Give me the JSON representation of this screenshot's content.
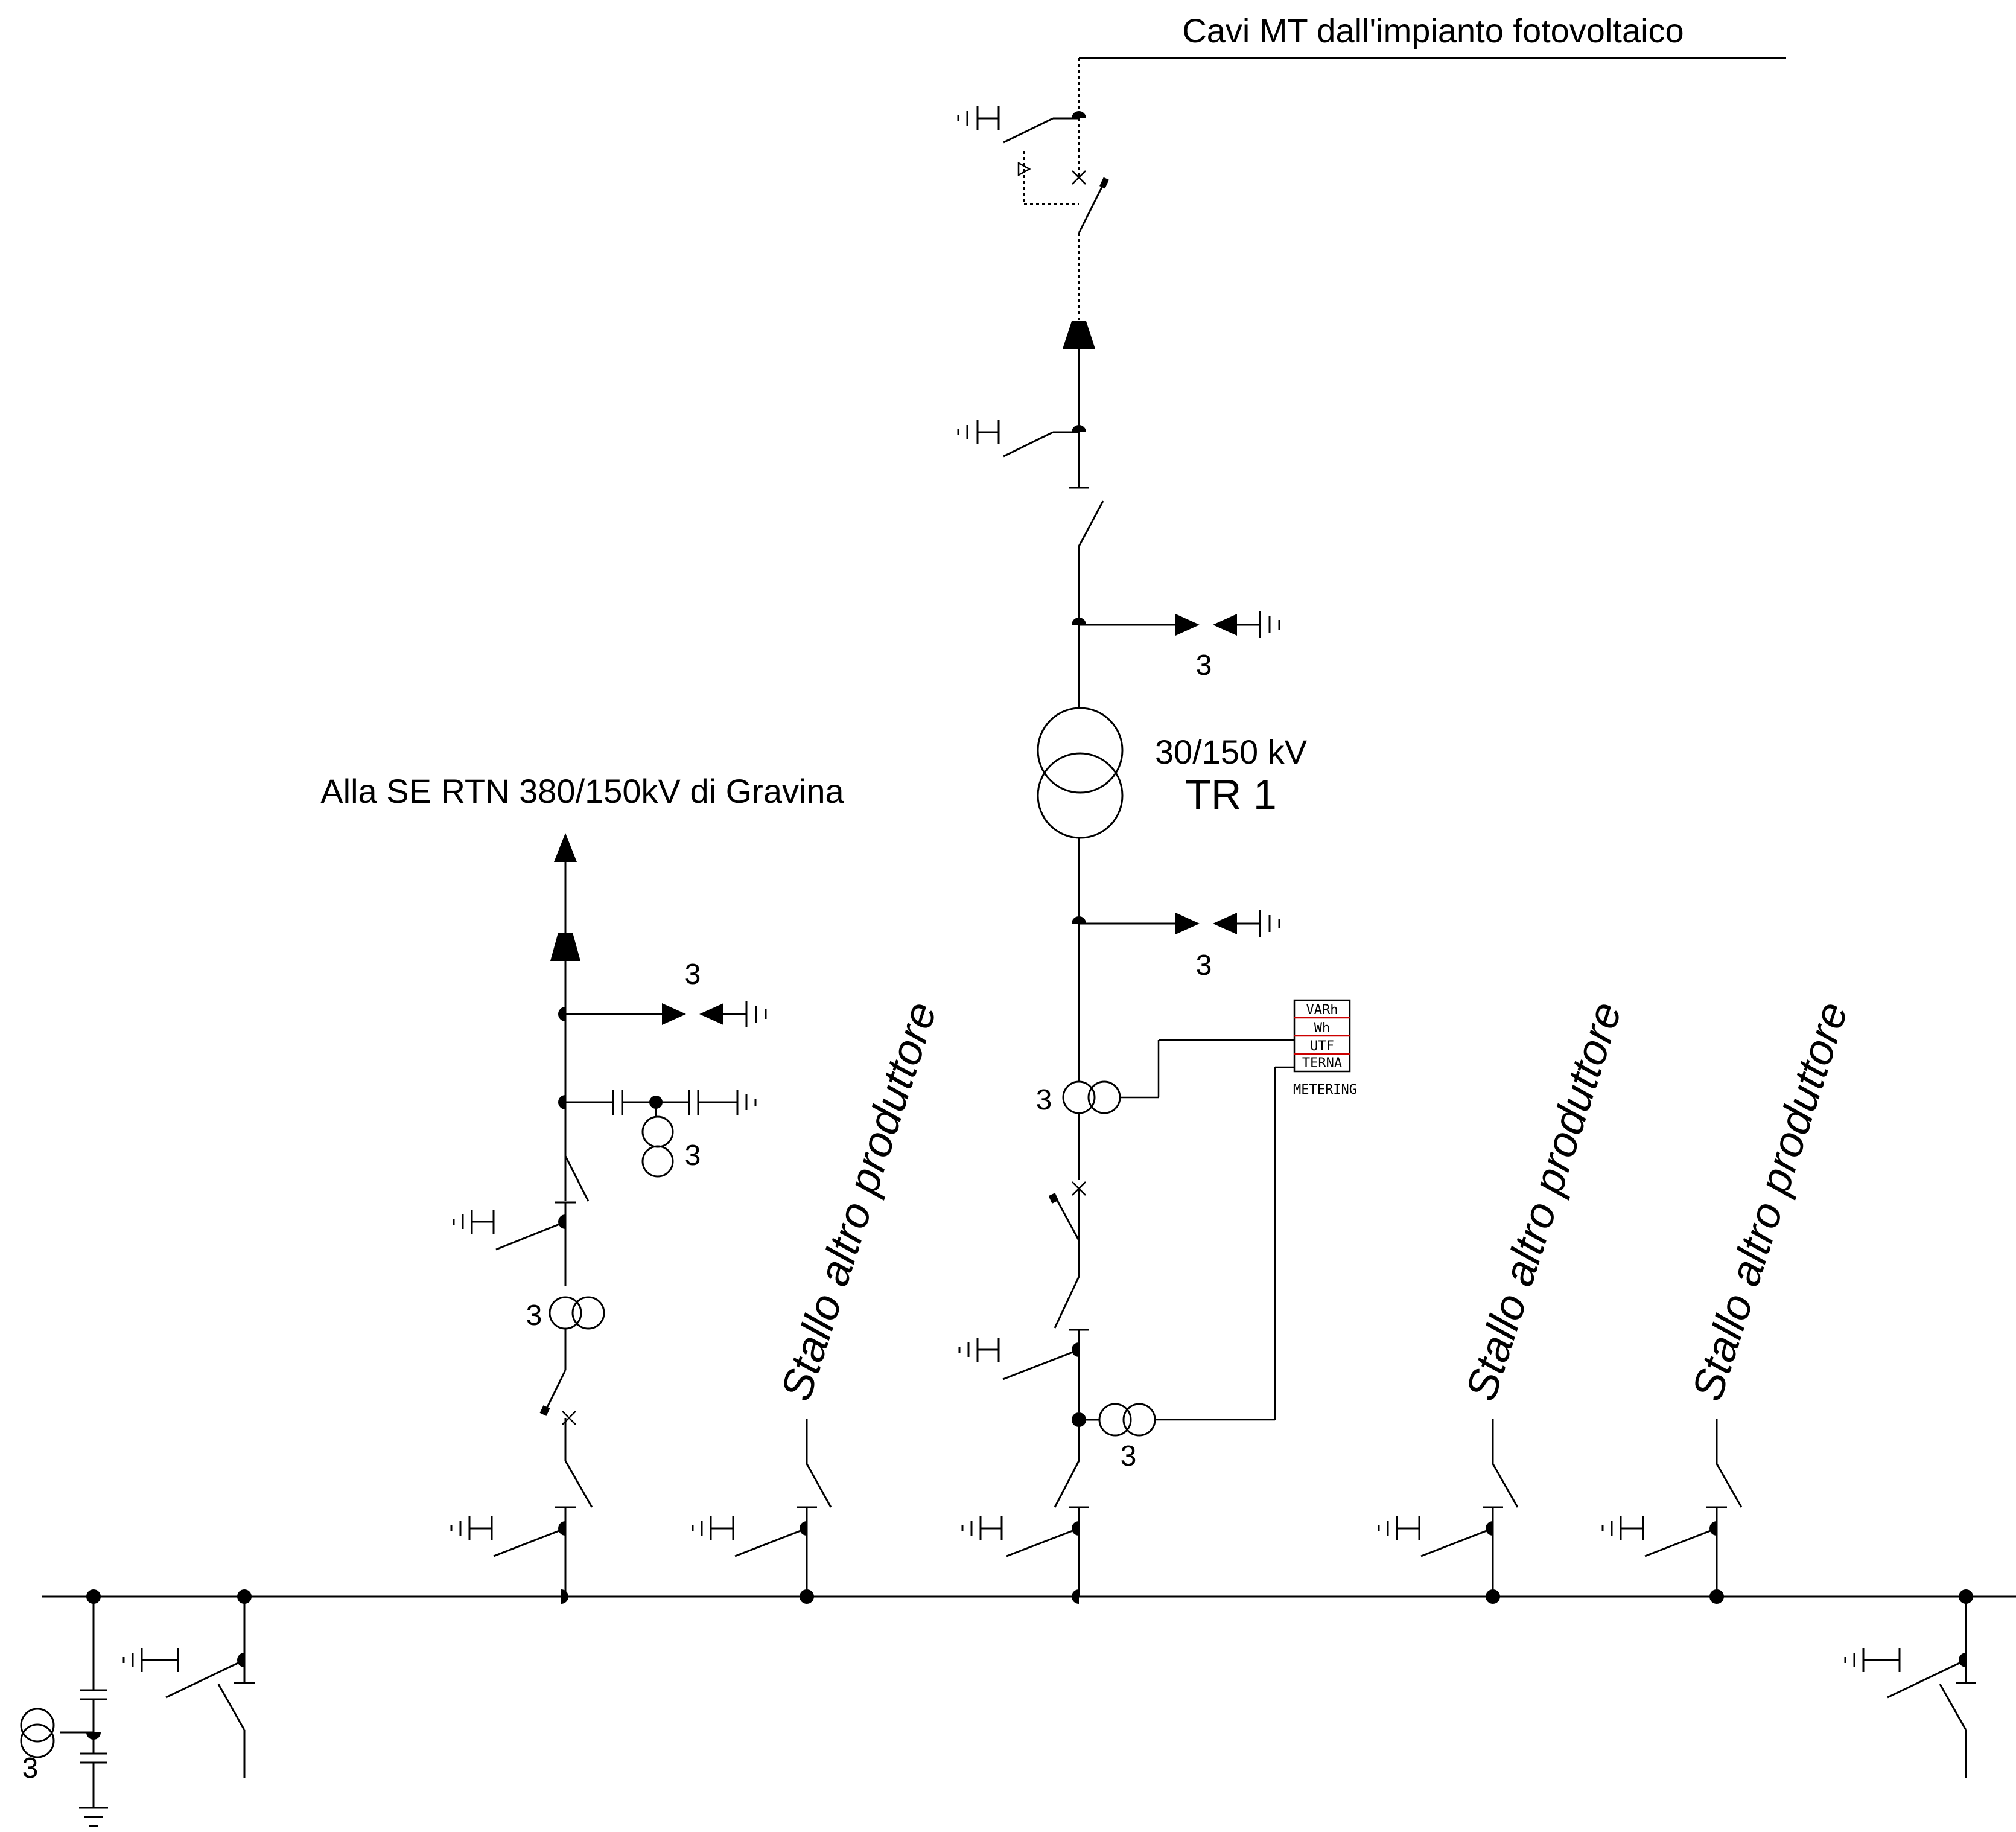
{
  "labels": {
    "mt_cables": "Cavi MT dall'impianto fotovoltaico",
    "se_rtn": "Alla SE RTN 380/150kV di Gravina",
    "transformer_ratio": "30/150 kV",
    "transformer_name": "TR 1",
    "other_producer_1": "Stallo altro produttore",
    "other_producer_2": "Stallo altro produttore",
    "other_producer_3": "Stallo altro produttore",
    "meter_title": "METERING"
  },
  "meter_rows": [
    "VARh",
    "Wh",
    "UTF",
    "TERNA"
  ],
  "phase_count": "3",
  "accent_color": "#cc0000"
}
